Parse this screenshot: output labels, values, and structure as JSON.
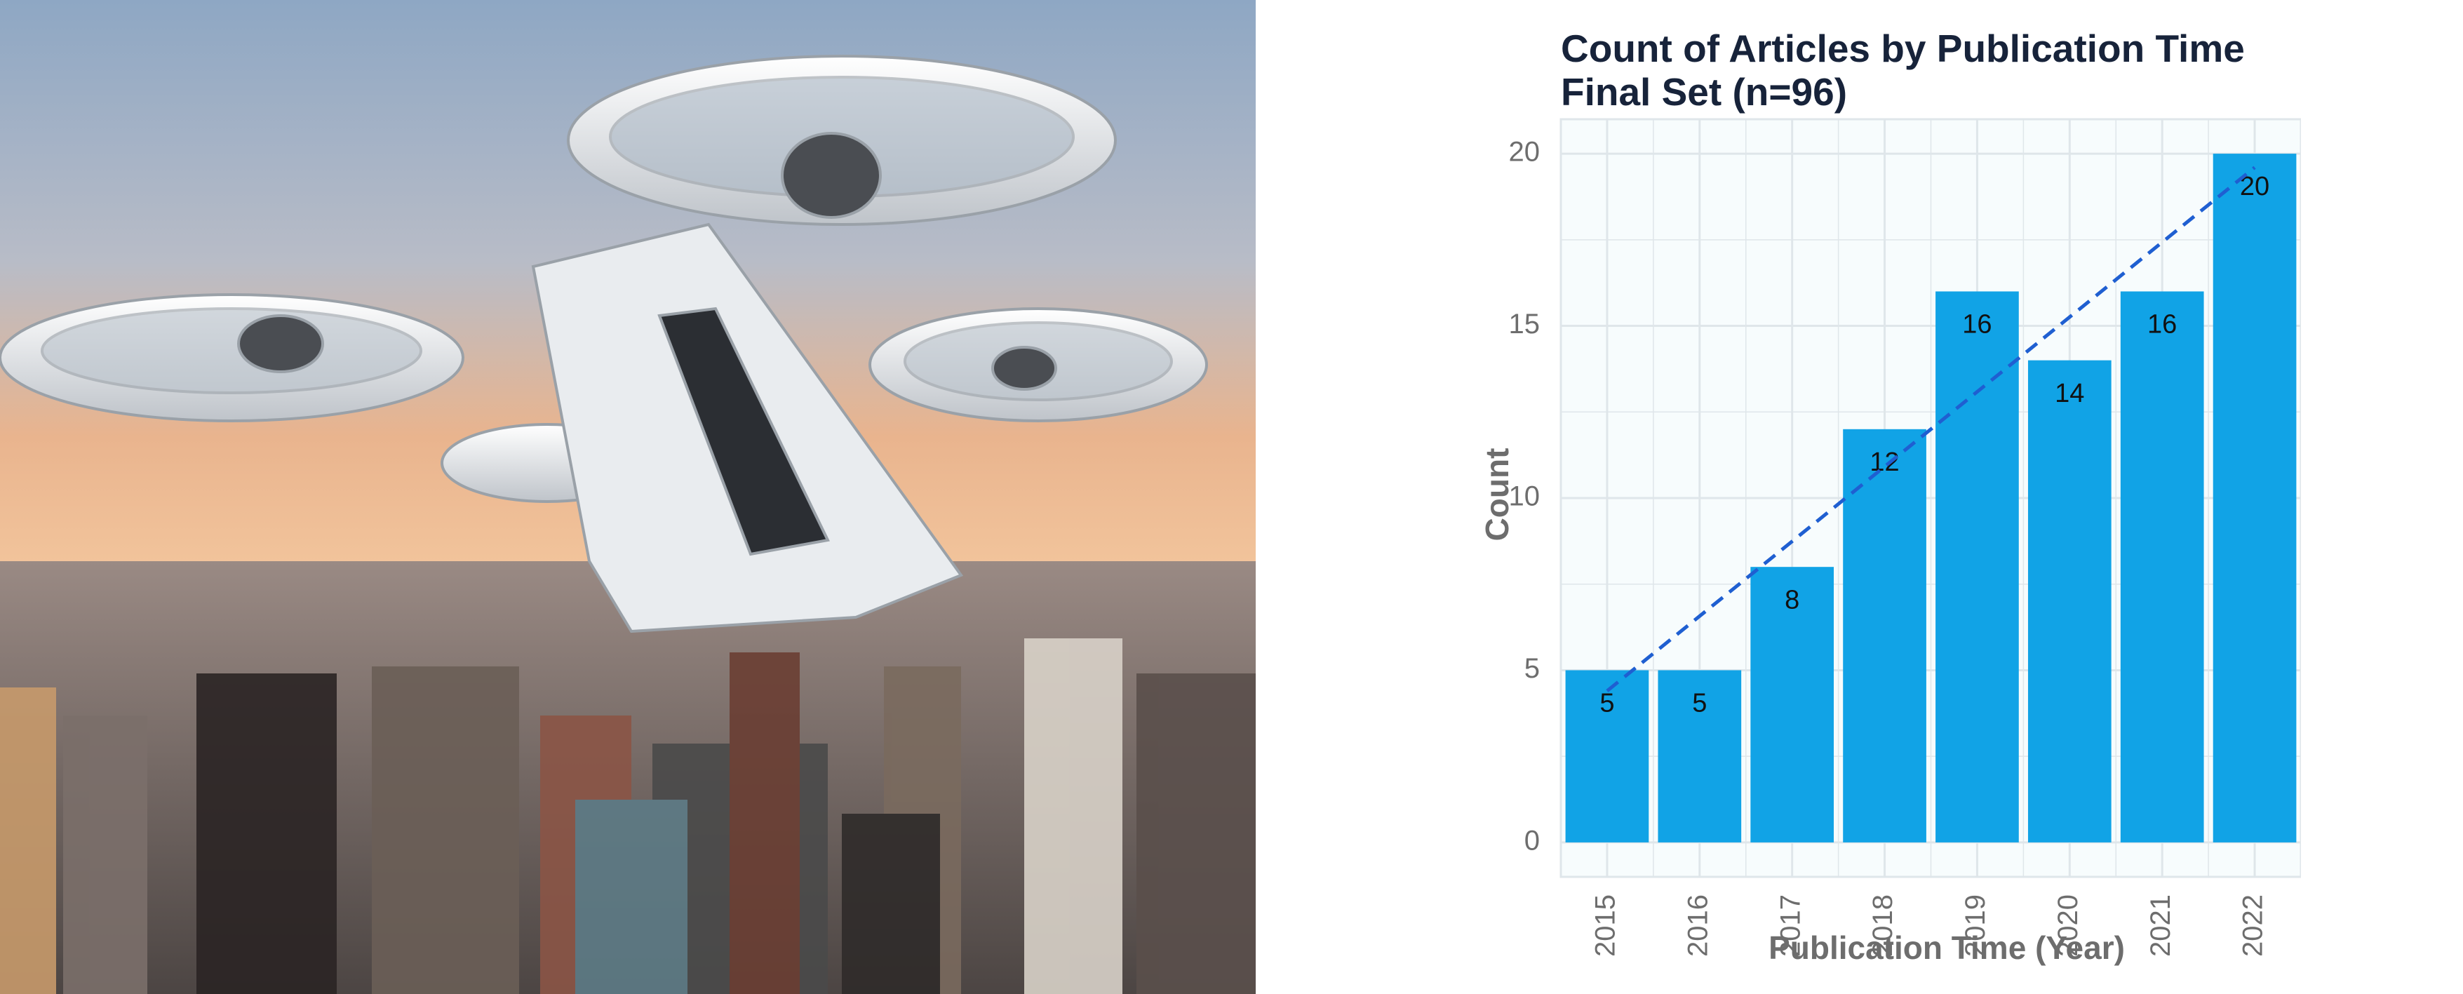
{
  "photo": {
    "subject": "eVTOL air taxi quadcopter flying above a dense city skyline",
    "colors": {
      "sky_top": "#8ea7c4",
      "sky_horizon": "#e9b48e",
      "aircraft_body": "#e9ecef",
      "rotor_hub": "#4a4d52"
    }
  },
  "chart_data": {
    "type": "bar",
    "title_line1": "Count of Articles by Publication Time",
    "title_line2": "Final Set (n=96)",
    "xlabel": "Publication Time (Year)",
    "ylabel": "Count",
    "categories": [
      "2015",
      "2016",
      "2017",
      "2018",
      "2019",
      "2020",
      "2021",
      "2022"
    ],
    "values": [
      5,
      5,
      8,
      12,
      16,
      14,
      16,
      20
    ],
    "data_labels": [
      "5",
      "5",
      "8",
      "12",
      "16",
      "14",
      "16",
      "20"
    ],
    "ylim": [
      -1,
      21
    ],
    "yticks": [
      0,
      5,
      10,
      15,
      20
    ],
    "ytick_labels": [
      "0",
      "5",
      "10",
      "15",
      "20"
    ],
    "grid": true,
    "trendline": {
      "style": "dashed",
      "from_value": 4.4,
      "to_value": 19.6
    },
    "colors": {
      "bar": "#11a3e6",
      "trend": "#1f5fd1",
      "panel_bg": "#f7fcfd",
      "grid": "#dfe6ea",
      "title": "#17233a",
      "axis_text": "#6d6d6d",
      "label_text": "#111111"
    }
  }
}
